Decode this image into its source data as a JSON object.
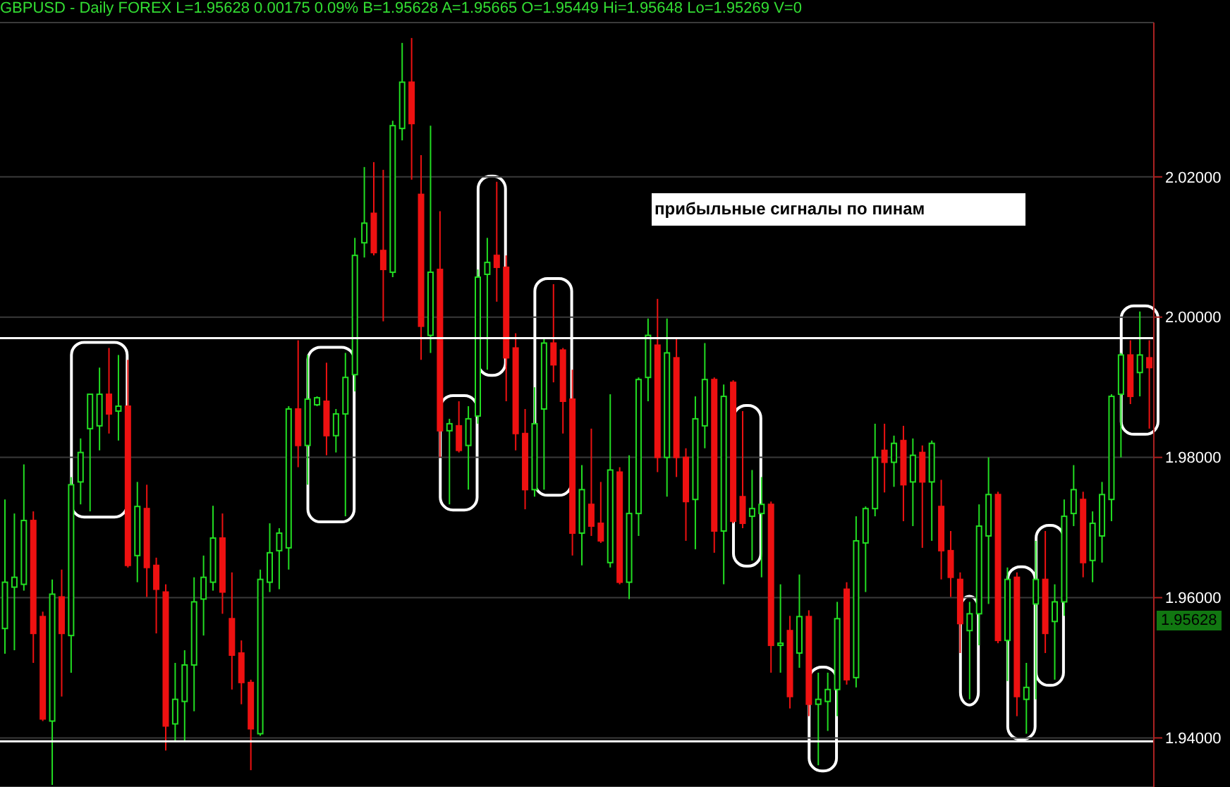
{
  "chart_data": {
    "type": "candlestick",
    "title": "GBPUSD - Daily FOREX L=1.95628 0.00175 0.09% B=1.95628 A=1.95665 O=1.95449 Hi=1.95648 Lo=1.95269 V=0",
    "annotations": [
      "прибыльные сигналы по пинам",
      "1.95628"
    ],
    "categories": [
      null,
      null,
      null,
      null,
      null,
      null,
      null,
      null,
      null,
      null,
      null,
      null,
      null,
      null,
      null,
      null,
      null,
      null,
      null,
      null,
      null,
      null,
      null,
      null,
      null,
      null,
      null,
      null,
      null,
      null,
      null,
      null,
      null,
      null,
      null,
      null,
      null,
      null,
      null,
      null,
      null,
      null,
      null,
      null,
      null,
      null,
      null,
      null,
      null,
      null,
      null,
      null,
      null,
      null,
      null,
      null,
      null,
      null,
      null,
      null,
      null,
      null,
      null,
      null,
      null,
      null,
      null,
      null,
      null,
      null,
      null,
      null,
      null,
      null,
      null,
      null,
      null,
      null,
      null,
      null,
      null,
      null,
      null,
      null,
      null,
      null,
      null,
      null,
      null,
      null,
      null,
      null,
      null,
      null,
      null,
      null,
      null,
      null,
      null,
      null,
      null,
      null,
      null,
      null,
      null,
      null,
      null,
      null,
      null,
      null,
      null,
      null,
      null,
      null,
      null,
      null,
      null,
      null,
      null,
      null,
      null,
      null
    ],
    "ohlc": [
      [
        1.9556,
        1.974,
        1.952,
        1.9622
      ],
      [
        1.9615,
        1.972,
        1.9525,
        1.9629
      ],
      [
        1.9619,
        1.979,
        1.961,
        1.971
      ],
      [
        1.971,
        1.9723,
        1.9507,
        1.9549
      ],
      [
        1.9573,
        1.958,
        1.9424,
        1.9427
      ],
      [
        1.9424,
        1.9626,
        1.9333,
        1.9605
      ],
      [
        1.9601,
        1.964,
        1.9459,
        1.9549
      ],
      [
        1.9546,
        1.9772,
        1.9493,
        1.9761
      ],
      [
        1.9765,
        1.9827,
        1.9733,
        1.9807
      ],
      [
        1.9841,
        1.989,
        1.9723,
        1.989
      ],
      [
        1.9845,
        1.9928,
        1.981,
        1.989
      ],
      [
        1.989,
        1.9956,
        1.9834,
        1.9862
      ],
      [
        1.9866,
        1.9946,
        1.9824,
        1.9873
      ],
      [
        1.9873,
        1.9939,
        1.9643,
        1.9646
      ],
      [
        1.966,
        1.9765,
        1.9622,
        1.973
      ],
      [
        1.9727,
        1.9761,
        1.9601,
        1.9643
      ],
      [
        1.9646,
        1.9657,
        1.9549,
        1.9612
      ],
      [
        1.9608,
        1.9619,
        1.9382,
        1.9417
      ],
      [
        1.942,
        1.9507,
        1.9396,
        1.9455
      ],
      [
        1.9452,
        1.9525,
        1.9396,
        1.9504
      ],
      [
        1.9504,
        1.9629,
        1.9438,
        1.9594
      ],
      [
        1.9598,
        1.966,
        1.9546,
        1.9629
      ],
      [
        1.9622,
        1.9731,
        1.961,
        1.9685
      ],
      [
        1.9685,
        1.972,
        1.9577,
        1.9608
      ],
      [
        1.957,
        1.9636,
        1.9469,
        1.9518
      ],
      [
        1.9521,
        1.9539,
        1.9448,
        1.9479
      ],
      [
        1.9479,
        1.9483,
        1.9354,
        1.9413
      ],
      [
        1.9406,
        1.964,
        1.9403,
        1.9626
      ],
      [
        1.9622,
        1.9706,
        1.9608,
        1.9664
      ],
      [
        1.9667,
        1.9699,
        1.9612,
        1.9692
      ],
      [
        1.9671,
        1.9873,
        1.964,
        1.9869
      ],
      [
        1.9869,
        1.9967,
        1.9786,
        1.9817
      ],
      [
        1.9817,
        1.9946,
        1.9761,
        1.9883
      ],
      [
        1.9875,
        1.9887,
        1.9873,
        1.9885
      ],
      [
        1.988,
        1.9935,
        1.9803,
        1.9831
      ],
      [
        1.9831,
        1.9869,
        1.9807,
        1.9862
      ],
      [
        1.9862,
        1.9949,
        1.9716,
        1.9914
      ],
      [
        1.9918,
        2.0113,
        1.9894,
        2.0088
      ],
      [
        2.0106,
        2.0214,
        2.0085,
        2.0134
      ],
      [
        2.0148,
        2.0221,
        2.0088,
        2.0092
      ],
      [
        2.0095,
        2.021,
        1.9994,
        2.0068
      ],
      [
        2.0064,
        2.028,
        2.0057,
        2.0273
      ],
      [
        2.0269,
        2.0391,
        2.0252,
        2.0335
      ],
      [
        2.0335,
        2.0398,
        2.0196,
        2.0276
      ],
      [
        2.0175,
        2.0231,
        1.9939,
        1.9987
      ],
      [
        1.9974,
        2.0273,
        1.9949,
        2.0064
      ],
      [
        2.0068,
        2.0151,
        1.98,
        1.9838
      ],
      [
        1.9838,
        1.9855,
        1.9733,
        1.9848
      ],
      [
        1.9845,
        1.988,
        1.9807,
        1.981
      ],
      [
        1.9817,
        1.9873,
        1.9754,
        1.9855
      ],
      [
        1.9859,
        2.0068,
        1.9848,
        2.0057
      ],
      [
        2.0061,
        2.0113,
        1.9925,
        2.0078
      ],
      [
        2.0088,
        2.0193,
        2.0022,
        2.0071
      ],
      [
        2.0071,
        2.0088,
        1.988,
        1.9942
      ],
      [
        1.9956,
        1.9977,
        1.981,
        1.9834
      ],
      [
        1.9834,
        1.9869,
        1.9726,
        1.9754
      ],
      [
        1.9754,
        1.99,
        1.9744,
        1.9848
      ],
      [
        1.9869,
        1.997,
        1.9754,
        1.9963
      ],
      [
        1.9963,
        2.0047,
        1.9907,
        1.9932
      ],
      [
        1.9953,
        1.9956,
        1.9834,
        1.988
      ],
      [
        1.9883,
        1.9925,
        1.966,
        1.9692
      ],
      [
        1.9692,
        1.9789,
        1.9646,
        1.9754
      ],
      [
        1.9733,
        1.9841,
        1.9688,
        1.9702
      ],
      [
        1.9706,
        1.9765,
        1.9678,
        1.9681
      ],
      [
        1.965,
        1.989,
        1.9643,
        1.9782
      ],
      [
        1.9779,
        1.9786,
        1.9619,
        1.9622
      ],
      [
        1.9622,
        1.9803,
        1.9598,
        1.972
      ],
      [
        1.972,
        1.9914,
        1.9688,
        1.9911
      ],
      [
        1.9914,
        1.9998,
        1.988,
        1.9974
      ],
      [
        1.996,
        2.0026,
        1.9779,
        1.98
      ],
      [
        1.98,
        1.9998,
        1.9744,
        1.9949
      ],
      [
        1.9942,
        1.997,
        1.9772,
        1.98
      ],
      [
        1.98,
        1.9813,
        1.9681,
        1.9737
      ],
      [
        1.974,
        1.9887,
        1.9669,
        1.9855
      ],
      [
        1.9845,
        1.9963,
        1.9813,
        1.9911
      ],
      [
        1.9911,
        1.9914,
        1.9664,
        1.9695
      ],
      [
        1.9695,
        1.9904,
        1.9619,
        1.9887
      ],
      [
        1.9907,
        1.991,
        1.9706,
        1.9709
      ],
      [
        1.9744,
        1.9866,
        1.9699,
        1.9706
      ],
      [
        1.9716,
        1.9782,
        1.9653,
        1.9727
      ],
      [
        1.972,
        1.9772,
        1.9629,
        1.9733
      ],
      [
        1.9733,
        1.9737,
        1.9493,
        1.9532
      ],
      [
        1.9532,
        1.9619,
        1.9493,
        1.9535
      ],
      [
        1.9553,
        1.9574,
        1.9442,
        1.9459
      ],
      [
        1.9521,
        1.9633,
        1.95,
        1.9573
      ],
      [
        1.9573,
        1.9582,
        1.9431,
        1.9448
      ],
      [
        1.9448,
        1.9493,
        1.9361,
        1.9455
      ],
      [
        1.9452,
        1.9493,
        1.941,
        1.9469
      ],
      [
        1.9469,
        1.9594,
        1.9431,
        1.957
      ],
      [
        1.9612,
        1.9622,
        1.9476,
        1.9483
      ],
      [
        1.9486,
        1.9716,
        1.9472,
        1.9681
      ],
      [
        1.9678,
        1.973,
        1.9608,
        1.9727
      ],
      [
        1.9727,
        1.9848,
        1.9716,
        1.98
      ],
      [
        1.981,
        1.9848,
        1.975,
        1.9793
      ],
      [
        1.9793,
        1.9831,
        1.9758,
        1.982
      ],
      [
        1.9824,
        1.9845,
        1.9709,
        1.9761
      ],
      [
        1.9765,
        1.9827,
        1.9702,
        1.9803
      ],
      [
        1.9807,
        1.9817,
        1.9671,
        1.9765
      ],
      [
        1.9765,
        1.9824,
        1.9681,
        1.982
      ],
      [
        1.973,
        1.9768,
        1.9626,
        1.9667
      ],
      [
        1.9667,
        1.9695,
        1.9601,
        1.9629
      ],
      [
        1.9626,
        1.9636,
        1.9521,
        1.9563
      ],
      [
        1.9553,
        1.9594,
        1.9455,
        1.9577
      ],
      [
        1.9577,
        1.9733,
        1.9532,
        1.9702
      ],
      [
        1.9688,
        1.98,
        1.9591,
        1.9747
      ],
      [
        1.9747,
        1.9751,
        1.9535,
        1.9539
      ],
      [
        1.9539,
        1.9643,
        1.9481,
        1.9626
      ],
      [
        1.9629,
        1.9636,
        1.9431,
        1.9459
      ],
      [
        1.9455,
        1.9507,
        1.9406,
        1.9472
      ],
      [
        1.9591,
        1.9681,
        1.9455,
        1.9626
      ],
      [
        1.9626,
        1.9695,
        1.9521,
        1.9549
      ],
      [
        1.9566,
        1.9619,
        1.9483,
        1.9594
      ],
      [
        1.9594,
        1.974,
        1.9574,
        1.9716
      ],
      [
        1.972,
        1.9789,
        1.9702,
        1.9754
      ],
      [
        1.974,
        1.9751,
        1.9629,
        1.965
      ],
      [
        1.9653,
        1.9723,
        1.9622,
        1.9706
      ],
      [
        1.9688,
        1.9765,
        1.965,
        1.9747
      ],
      [
        1.974,
        1.989,
        1.9709,
        1.9887
      ],
      [
        1.989,
        1.9949,
        1.98,
        1.9946
      ],
      [
        1.9946,
        1.9967,
        1.9876,
        1.9887
      ],
      [
        1.9921,
        2.0008,
        1.9887,
        1.9946
      ],
      [
        1.9942,
        1.9967,
        1.9841,
        1.9928
      ]
    ],
    "colors": [
      "#22dd22",
      "#22dd22",
      "#22dd22",
      "#ee1111",
      "#ee1111",
      "#22dd22",
      "#ee1111",
      "#22dd22",
      "#22dd22",
      "#22dd22",
      "#22dd22",
      "#ee1111",
      "#22dd22",
      "#ee1111",
      "#22dd22",
      "#ee1111",
      "#ee1111",
      "#ee1111",
      "#22dd22",
      "#22dd22",
      "#22dd22",
      "#22dd22",
      "#22dd22",
      "#ee1111",
      "#ee1111",
      "#ee1111",
      "#ee1111",
      "#22dd22",
      "#22dd22",
      "#22dd22",
      "#22dd22",
      "#ee1111",
      "#22dd22",
      "#22dd22",
      "#ee1111",
      "#22dd22",
      "#22dd22",
      "#22dd22",
      "#22dd22",
      "#ee1111",
      "#ee1111",
      "#22dd22",
      "#22dd22",
      "#ee1111",
      "#ee1111",
      "#22dd22",
      "#ee1111",
      "#22dd22",
      "#ee1111",
      "#22dd22",
      "#22dd22",
      "#22dd22",
      "#ee1111",
      "#ee1111",
      "#ee1111",
      "#ee1111",
      "#22dd22",
      "#22dd22",
      "#ee1111",
      "#ee1111",
      "#ee1111",
      "#22dd22",
      "#ee1111",
      "#ee1111",
      "#22dd22",
      "#ee1111",
      "#22dd22",
      "#22dd22",
      "#22dd22",
      "#ee1111",
      "#22dd22",
      "#ee1111",
      "#ee1111",
      "#22dd22",
      "#22dd22",
      "#ee1111",
      "#22dd22",
      "#ee1111",
      "#ee1111",
      "#22dd22",
      "#22dd22",
      "#ee1111",
      "#22dd22",
      "#ee1111",
      "#22dd22",
      "#ee1111",
      "#22dd22",
      "#22dd22",
      "#22dd22",
      "#ee1111",
      "#22dd22",
      "#22dd22",
      "#22dd22",
      "#ee1111",
      "#22dd22",
      "#ee1111",
      "#22dd22",
      "#ee1111",
      "#22dd22",
      "#ee1111",
      "#ee1111",
      "#ee1111",
      "#22dd22",
      "#22dd22",
      "#22dd22",
      "#ee1111",
      "#22dd22",
      "#ee1111",
      "#22dd22",
      "#22dd22",
      "#ee1111",
      "#22dd22",
      "#22dd22",
      "#22dd22",
      "#ee1111",
      "#22dd22",
      "#22dd22",
      "#22dd22",
      "#22dd22",
      "#ee1111",
      "#22dd22",
      "#ee1111"
    ],
    "ylim": [
      1.933,
      2.042
    ],
    "yticks": [
      {
        "value": 1.94,
        "label": "1.94000"
      },
      {
        "value": 1.96,
        "label": "1.96000"
      },
      {
        "value": 1.98,
        "label": "1.98000"
      },
      {
        "value": 2.0,
        "label": "2.00000"
      },
      {
        "value": 2.02,
        "label": "2.02000"
      }
    ],
    "grid": "y",
    "tick_labels": "y",
    "ref_lines": [
      {
        "axis": "y",
        "value": 1.997,
        "color": "#ffffff"
      },
      {
        "axis": "y",
        "value": 1.9395,
        "color": "#ffffff"
      }
    ]
  }
}
